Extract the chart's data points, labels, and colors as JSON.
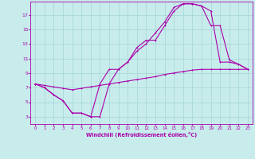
{
  "xlabel": "Windchill (Refroidissement éolien,°C)",
  "bg_color": "#c8ecec",
  "grid_color": "#a8d8d8",
  "line_color": "#aa00aa",
  "x_ticks": [
    0,
    1,
    2,
    3,
    4,
    5,
    6,
    7,
    8,
    9,
    10,
    11,
    12,
    13,
    14,
    15,
    16,
    17,
    18,
    19,
    20,
    21,
    22,
    23
  ],
  "y_ticks": [
    3,
    5,
    7,
    9,
    11,
    13,
    15,
    17
  ],
  "xlim": [
    -0.5,
    23.5
  ],
  "ylim": [
    2.0,
    18.8
  ],
  "line1_x": [
    0,
    1,
    2,
    3,
    4,
    5,
    6,
    7,
    8,
    9,
    10,
    11,
    12,
    13,
    14,
    15,
    16,
    17,
    18,
    19,
    20,
    21,
    22,
    23
  ],
  "line1_y": [
    7.5,
    7.0,
    6.0,
    5.2,
    3.5,
    3.5,
    3.0,
    3.0,
    7.5,
    9.5,
    10.5,
    12.5,
    13.5,
    13.5,
    15.5,
    17.5,
    18.5,
    18.5,
    18.2,
    15.5,
    15.5,
    10.8,
    10.2,
    9.5
  ],
  "line2_x": [
    0,
    1,
    2,
    3,
    4,
    5,
    6,
    7,
    8,
    9,
    10,
    11,
    12,
    13,
    14,
    15,
    16,
    17,
    18,
    19,
    20,
    21,
    22,
    23
  ],
  "line2_y": [
    7.5,
    7.0,
    6.0,
    5.2,
    3.5,
    3.5,
    3.0,
    7.5,
    9.5,
    9.5,
    10.5,
    12.0,
    13.0,
    14.5,
    16.0,
    18.0,
    18.5,
    18.5,
    18.2,
    17.5,
    10.5,
    10.5,
    10.2,
    9.5
  ],
  "line3_x": [
    0,
    1,
    2,
    3,
    4,
    5,
    6,
    7,
    8,
    9,
    10,
    11,
    12,
    13,
    14,
    15,
    16,
    17,
    18,
    19,
    20,
    21,
    22,
    23
  ],
  "line3_y": [
    7.5,
    7.3,
    7.1,
    6.9,
    6.7,
    6.9,
    7.1,
    7.3,
    7.5,
    7.7,
    7.9,
    8.1,
    8.3,
    8.5,
    8.8,
    9.0,
    9.2,
    9.4,
    9.5,
    9.5,
    9.5,
    9.5,
    9.5,
    9.5
  ]
}
